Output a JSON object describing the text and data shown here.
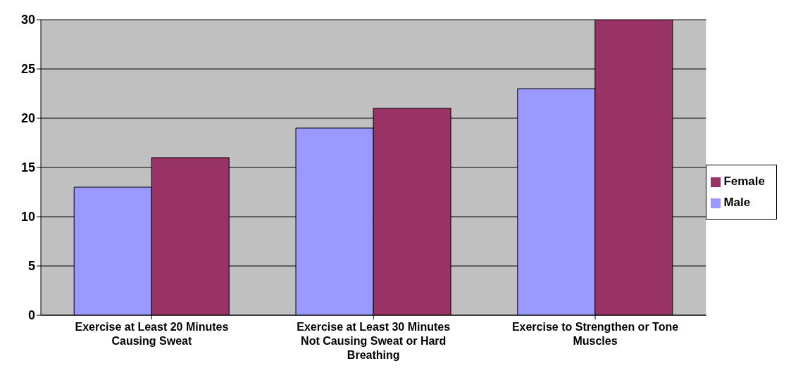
{
  "chart_data": {
    "type": "bar",
    "categories": [
      "Exercise at Least 20 Minutes Causing Sweat",
      "Exercise at Least 30 Minutes Not Causing Sweat or Hard Breathing",
      "Exercise to Strengthen or Tone Muscles"
    ],
    "series": [
      {
        "name": "Male",
        "color": "#9999ff",
        "values": [
          13,
          19,
          23
        ]
      },
      {
        "name": "Female",
        "color": "#993366",
        "values": [
          16,
          21,
          30
        ]
      }
    ],
    "ylim": [
      0,
      30
    ],
    "yticks": [
      0,
      5,
      10,
      15,
      20,
      25,
      30
    ],
    "grid": "y",
    "legend": "right"
  }
}
